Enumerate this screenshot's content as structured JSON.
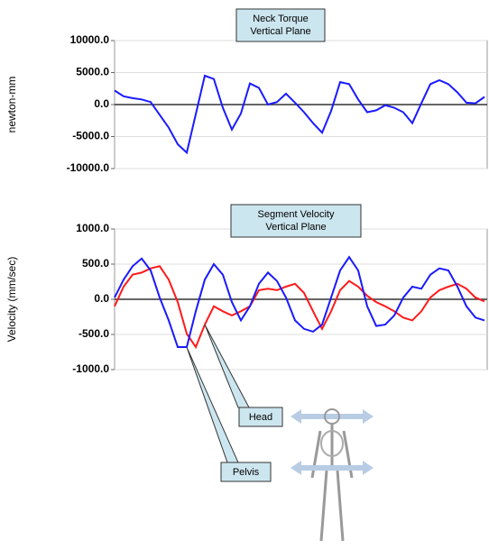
{
  "chart_data": [
    {
      "type": "line",
      "title": "Neck Torque",
      "subtitle": "Vertical Plane",
      "y_label": "newton-mm",
      "ylim": [
        -10000,
        10000
      ],
      "yticks": [
        {
          "value": -10000,
          "label": "-10000.0"
        },
        {
          "value": -5000,
          "label": "-5000.0"
        },
        {
          "value": 0,
          "label": "0.0"
        },
        {
          "value": 5000,
          "label": "5000.0"
        },
        {
          "value": 10000,
          "label": "10000.0"
        }
      ],
      "grid": true,
      "series": [
        {
          "color": "#1a1aff",
          "values": [
            2200,
            1300,
            1000,
            800,
            400,
            -1600,
            -3600,
            -6200,
            -7500,
            -1500,
            4500,
            4000,
            -500,
            -3900,
            -1400,
            3300,
            2600,
            0,
            400,
            1700,
            300,
            -1200,
            -2900,
            -4400,
            -1000,
            3500,
            3200,
            800,
            -1200,
            -900,
            -100,
            -500,
            -1200,
            -2900,
            200,
            3200,
            3800,
            3200,
            1900,
            300,
            200,
            1200
          ]
        }
      ]
    },
    {
      "type": "line",
      "title": "Segment Velocity",
      "subtitle": "Vertical Plane",
      "y_label": "Velocity (mm/sec)",
      "ylim": [
        -1000,
        1000
      ],
      "yticks": [
        {
          "value": -1000,
          "label": "-1000.0"
        },
        {
          "value": -500,
          "label": "-500.0"
        },
        {
          "value": 0,
          "label": "0.0"
        },
        {
          "value": 500,
          "label": "500.0"
        },
        {
          "value": 1000,
          "label": "1000.0"
        }
      ],
      "grid": true,
      "series": [
        {
          "name": "Head",
          "color": "#ff1a1a",
          "values": [
            -100,
            180,
            350,
            380,
            440,
            470,
            280,
            -40,
            -490,
            -680,
            -360,
            -100,
            -170,
            -230,
            -170,
            -100,
            130,
            150,
            130,
            180,
            220,
            90,
            -170,
            -420,
            -170,
            130,
            260,
            180,
            50,
            -40,
            -100,
            -170,
            -260,
            -300,
            -170,
            25,
            130,
            180,
            220,
            150,
            25,
            -30
          ]
        },
        {
          "name": "Pelvis",
          "color": "#1a1aff",
          "values": [
            25,
            280,
            470,
            580,
            410,
            25,
            -300,
            -680,
            -680,
            -170,
            280,
            500,
            350,
            -40,
            -300,
            -100,
            220,
            380,
            260,
            25,
            -300,
            -420,
            -460,
            -360,
            25,
            410,
            600,
            410,
            -100,
            -380,
            -360,
            -230,
            25,
            180,
            150,
            350,
            440,
            410,
            180,
            -100,
            -260,
            -300
          ]
        }
      ]
    }
  ]
}
